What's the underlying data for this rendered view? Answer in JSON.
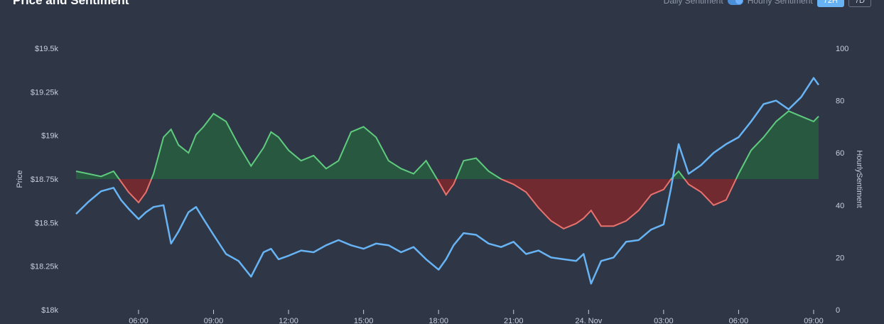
{
  "title": "Price and Sentiment",
  "controls": {
    "daily_label": "Daily Sentiment",
    "hourly_label": "Hourly Sentiment",
    "range_active": "72H",
    "range_other": "7D"
  },
  "colors": {
    "background": "#2f3747",
    "price_line": "#67b3f3",
    "sentiment_positive": "#5fcb7e",
    "sentiment_positive_fill": "#295840",
    "sentiment_negative": "#e8726e",
    "sentiment_negative_fill": "#712a2f"
  },
  "chart_data": {
    "type": "line",
    "x_range": [
      3.5,
      33.2
    ],
    "x_ticks": [
      {
        "x": 6,
        "label": "06:00"
      },
      {
        "x": 9,
        "label": "09:00"
      },
      {
        "x": 12,
        "label": "12:00"
      },
      {
        "x": 15,
        "label": "15:00"
      },
      {
        "x": 18,
        "label": "18:00"
      },
      {
        "x": 21,
        "label": "21:00"
      },
      {
        "x": 24,
        "label": "24. Nov"
      },
      {
        "x": 27,
        "label": "03:00"
      },
      {
        "x": 30,
        "label": "06:00"
      },
      {
        "x": 33,
        "label": "09:00"
      }
    ],
    "y_left": {
      "label": "Price",
      "range": [
        18000,
        19500
      ],
      "ticks": [
        18000,
        18250,
        18500,
        18750,
        19000,
        19250,
        19500
      ],
      "tick_labels": [
        "$18k",
        "$18.25k",
        "$18.5k",
        "$18.75k",
        "$19k",
        "$19.25k",
        "$19.5k"
      ]
    },
    "y_right": {
      "label": "HourlySentiment",
      "range": [
        0,
        100
      ],
      "ticks": [
        0,
        20,
        40,
        60,
        80,
        100
      ],
      "tick_labels": [
        "0",
        "20",
        "40",
        "60",
        "80",
        "100"
      ],
      "baseline": 50
    },
    "series": [
      {
        "axis": "left",
        "x": [
          3.5,
          4.0,
          4.5,
          5.0,
          5.3,
          5.6,
          6.0,
          6.3,
          6.6,
          7.0,
          7.3,
          7.6,
          8.0,
          8.3,
          8.6,
          9.0,
          9.5,
          10.0,
          10.5,
          11.0,
          11.3,
          11.6,
          12.0,
          12.5,
          13.0,
          13.5,
          14.0,
          14.5,
          15.0,
          15.5,
          16.0,
          16.5,
          17.0,
          17.5,
          18.0,
          18.3,
          18.6,
          19.0,
          19.5,
          20.0,
          20.5,
          21.0,
          21.5,
          22.0,
          22.5,
          23.0,
          23.5,
          23.8,
          24.1,
          24.5,
          25.0,
          25.5,
          26.0,
          26.5,
          27.0,
          27.3,
          27.6,
          28.0,
          28.5,
          29.0,
          29.5,
          30.0,
          30.5,
          31.0,
          31.5,
          32.0,
          32.5,
          33.0,
          33.2
        ],
        "y": [
          18550,
          18620,
          18680,
          18700,
          18630,
          18580,
          18520,
          18560,
          18590,
          18600,
          18380,
          18450,
          18560,
          18590,
          18520,
          18430,
          18320,
          18280,
          18190,
          18330,
          18350,
          18290,
          18310,
          18340,
          18330,
          18370,
          18400,
          18370,
          18350,
          18380,
          18370,
          18330,
          18360,
          18290,
          18230,
          18290,
          18370,
          18440,
          18430,
          18380,
          18360,
          18390,
          18320,
          18340,
          18300,
          18290,
          18280,
          18320,
          18150,
          18280,
          18300,
          18390,
          18400,
          18460,
          18490,
          18700,
          18950,
          18780,
          18830,
          18900,
          18950,
          18990,
          19080,
          19180,
          19200,
          19150,
          19220,
          19330,
          19290
        ]
      },
      {
        "axis": "right",
        "x": [
          3.5,
          4.0,
          4.5,
          5.0,
          5.3,
          5.6,
          6.0,
          6.3,
          6.6,
          7.0,
          7.3,
          7.6,
          8.0,
          8.3,
          8.6,
          9.0,
          9.5,
          10.0,
          10.5,
          11.0,
          11.3,
          11.6,
          12.0,
          12.5,
          13.0,
          13.5,
          14.0,
          14.5,
          15.0,
          15.5,
          16.0,
          16.5,
          17.0,
          17.5,
          18.0,
          18.3,
          18.6,
          19.0,
          19.5,
          20.0,
          20.5,
          21.0,
          21.5,
          22.0,
          22.5,
          23.0,
          23.5,
          23.8,
          24.1,
          24.5,
          25.0,
          25.5,
          26.0,
          26.5,
          27.0,
          27.3,
          27.6,
          28.0,
          28.5,
          29.0,
          29.5,
          30.0,
          30.5,
          31.0,
          31.5,
          32.0,
          32.5,
          33.0,
          33.2
        ],
        "y": [
          53,
          52,
          51,
          53,
          49,
          45,
          41,
          45,
          52,
          66,
          69,
          63,
          60,
          67,
          70,
          75,
          72,
          63,
          55,
          62,
          68,
          66,
          61,
          57,
          59,
          54,
          57,
          68,
          70,
          66,
          57,
          54,
          52,
          57,
          49,
          44,
          48,
          57,
          58,
          53,
          50,
          48,
          45,
          39,
          34,
          31,
          33,
          35,
          38,
          32,
          32,
          34,
          38,
          44,
          46,
          50,
          53,
          48,
          45,
          40,
          42,
          52,
          61,
          66,
          72,
          76,
          74,
          72,
          74
        ]
      }
    ]
  }
}
